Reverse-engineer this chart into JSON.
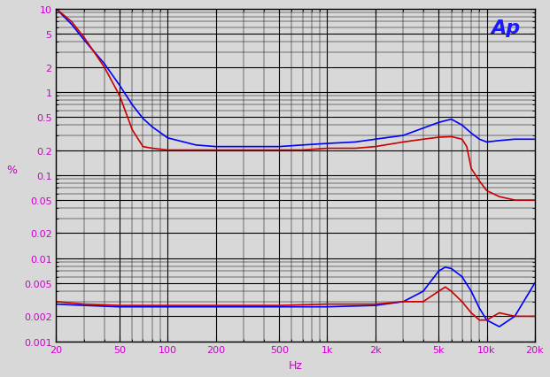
{
  "title": "",
  "xlabel": "Hz",
  "ylabel": "%",
  "xlim": [
    20,
    20000
  ],
  "ylim": [
    0.001,
    10
  ],
  "bg_color": "#d8d8d8",
  "grid_color": "#000000",
  "ap_text": "Ap",
  "ap_color": "#1a1aff",
  "label_color": "#cc00cc",
  "line_color_blue": "#0000ff",
  "line_color_red": "#cc0000",
  "blue_upper_x": [
    20,
    25,
    30,
    40,
    50,
    60,
    70,
    80,
    100,
    150,
    200,
    300,
    500,
    700,
    1000,
    1500,
    2000,
    3000,
    5000,
    6000,
    7000,
    8000,
    9000,
    10000,
    12000,
    15000,
    20000
  ],
  "blue_upper_y": [
    10.0,
    6.5,
    4.2,
    2.2,
    1.2,
    0.7,
    0.48,
    0.38,
    0.28,
    0.23,
    0.22,
    0.22,
    0.22,
    0.23,
    0.24,
    0.25,
    0.27,
    0.3,
    0.43,
    0.47,
    0.4,
    0.32,
    0.27,
    0.25,
    0.26,
    0.27,
    0.27
  ],
  "red_upper_x": [
    20,
    25,
    30,
    40,
    50,
    60,
    70,
    80,
    100,
    150,
    200,
    300,
    500,
    700,
    1000,
    1500,
    2000,
    3000,
    4000,
    5000,
    6000,
    7000,
    7500,
    8000,
    9000,
    10000,
    12000,
    15000,
    20000
  ],
  "red_upper_y": [
    10.0,
    7.0,
    4.5,
    2.0,
    0.9,
    0.35,
    0.22,
    0.21,
    0.2,
    0.2,
    0.2,
    0.2,
    0.2,
    0.2,
    0.21,
    0.21,
    0.22,
    0.25,
    0.27,
    0.285,
    0.29,
    0.27,
    0.22,
    0.12,
    0.085,
    0.065,
    0.055,
    0.05,
    0.05
  ],
  "blue_lower_x": [
    20,
    30,
    50,
    100,
    200,
    500,
    1000,
    2000,
    3000,
    4000,
    5000,
    5500,
    6000,
    7000,
    8000,
    9000,
    10000,
    12000,
    15000,
    20000
  ],
  "blue_lower_y": [
    0.0028,
    0.0027,
    0.0026,
    0.0026,
    0.0026,
    0.0026,
    0.0026,
    0.0027,
    0.003,
    0.004,
    0.007,
    0.0078,
    0.0075,
    0.006,
    0.004,
    0.0025,
    0.0018,
    0.0015,
    0.002,
    0.005
  ],
  "red_lower_x": [
    20,
    30,
    50,
    100,
    200,
    500,
    1000,
    2000,
    3000,
    4000,
    5000,
    5500,
    6000,
    7000,
    8000,
    9000,
    10000,
    12000,
    15000,
    20000
  ],
  "red_lower_y": [
    0.003,
    0.0028,
    0.0027,
    0.0027,
    0.0027,
    0.0027,
    0.0028,
    0.0028,
    0.003,
    0.003,
    0.004,
    0.0045,
    0.004,
    0.003,
    0.0022,
    0.0018,
    0.0018,
    0.0022,
    0.002,
    0.002
  ]
}
